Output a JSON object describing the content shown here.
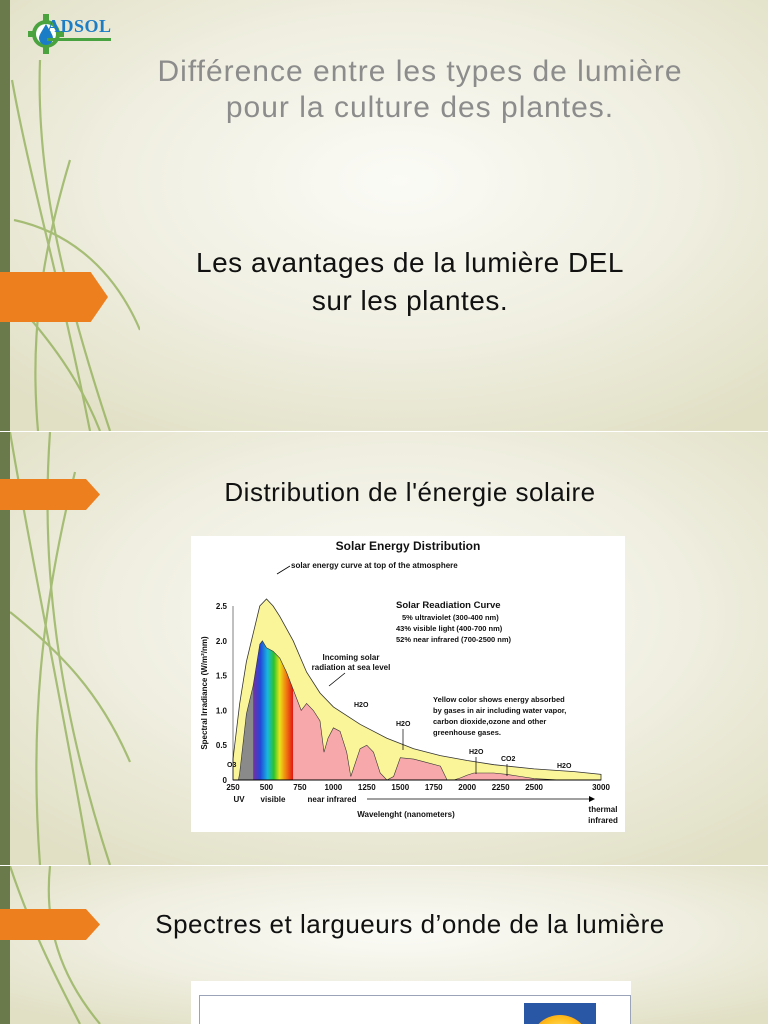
{
  "slide1": {
    "logo_text": "ADSOL",
    "title": [
      "Différence entre les types de lumière",
      "pour la culture des plantes."
    ],
    "subtitle": [
      "Les avantages de la lumière DEL",
      "sur les plantes."
    ]
  },
  "slide2": {
    "heading": "Distribution de l'énergie solaire",
    "chart_data": {
      "type": "area",
      "title": "Solar Energy Distribution",
      "xlabel": "Wavelenght (nanometers)",
      "ylabel": "Spectral Irradiance (W/m²/nm)",
      "x_ticks": [
        "250",
        "500",
        "750",
        "1000",
        "1250",
        "1500",
        "1750",
        "2000",
        "2250",
        "2500",
        "3000"
      ],
      "y_ticks": [
        "0",
        "0.5",
        "1.0",
        "1.5",
        "2.0",
        "2.5"
      ],
      "xlim": [
        250,
        3000
      ],
      "ylim": [
        0,
        2.5
      ],
      "band_labels": [
        "UV",
        "visible",
        "near infrared",
        "thermal",
        "infrared"
      ],
      "annotations": {
        "top_curve": "solar energy curve at top of the atmosphere",
        "legend_title": "Solar Readiation Curve",
        "legend_lines": [
          "5% ultraviolet (300-400 nm)",
          "43% visible light (400-700 nm)",
          "52% near infrared (700-2500 nm)"
        ],
        "sea_level": [
          "Incoming solar",
          "radiation at sea level"
        ],
        "yellow_note": [
          "Yellow color shows energy absorbed",
          "by gases in air including water vapor,",
          "carbon dioxide,ozone and other",
          "greenhouse gases."
        ],
        "o3": "O3",
        "h2o": "H2O",
        "co2": "CO2"
      },
      "series": [
        {
          "name": "solar energy curve at top of the atmosphere",
          "x": [
            250,
            300,
            350,
            400,
            450,
            500,
            550,
            600,
            700,
            800,
            900,
            1000,
            1200,
            1400,
            1600,
            1800,
            2000,
            2200,
            2500,
            2800,
            3000
          ],
          "y": [
            0.3,
            1.1,
            1.7,
            2.1,
            2.5,
            2.6,
            2.5,
            2.35,
            2.0,
            1.55,
            1.25,
            1.05,
            0.8,
            0.6,
            0.45,
            0.35,
            0.28,
            0.22,
            0.16,
            0.12,
            0.08
          ]
        },
        {
          "name": "Incoming solar radiation at sea level",
          "x": [
            250,
            290,
            300,
            350,
            400,
            450,
            470,
            500,
            550,
            600,
            650,
            700,
            760,
            800,
            850,
            900,
            930,
            960,
            1000,
            1050,
            1100,
            1130,
            1200,
            1250,
            1300,
            1350,
            1400,
            1450,
            1500,
            1600,
            1700,
            1800,
            1850,
            1900,
            1950,
            2000,
            2050,
            2100,
            2200,
            2300,
            2400,
            2500,
            2600,
            2700,
            2800,
            2900,
            3000
          ],
          "y": [
            0,
            0,
            0.1,
            0.95,
            1.35,
            1.95,
            2.0,
            1.9,
            1.85,
            1.75,
            1.55,
            1.3,
            1.0,
            1.1,
            1.0,
            0.85,
            0.4,
            0.6,
            0.75,
            0.7,
            0.4,
            0.05,
            0.45,
            0.5,
            0.4,
            0.1,
            0.0,
            0.05,
            0.32,
            0.3,
            0.25,
            0.2,
            0.0,
            0.0,
            0.03,
            0.07,
            0.1,
            0.1,
            0.1,
            0.08,
            0.05,
            0.02,
            0.01,
            0.0,
            0.0,
            0.0,
            0.0
          ]
        }
      ]
    }
  },
  "slide3": {
    "heading": "Spectres et largueurs d’onde de la lumière"
  }
}
